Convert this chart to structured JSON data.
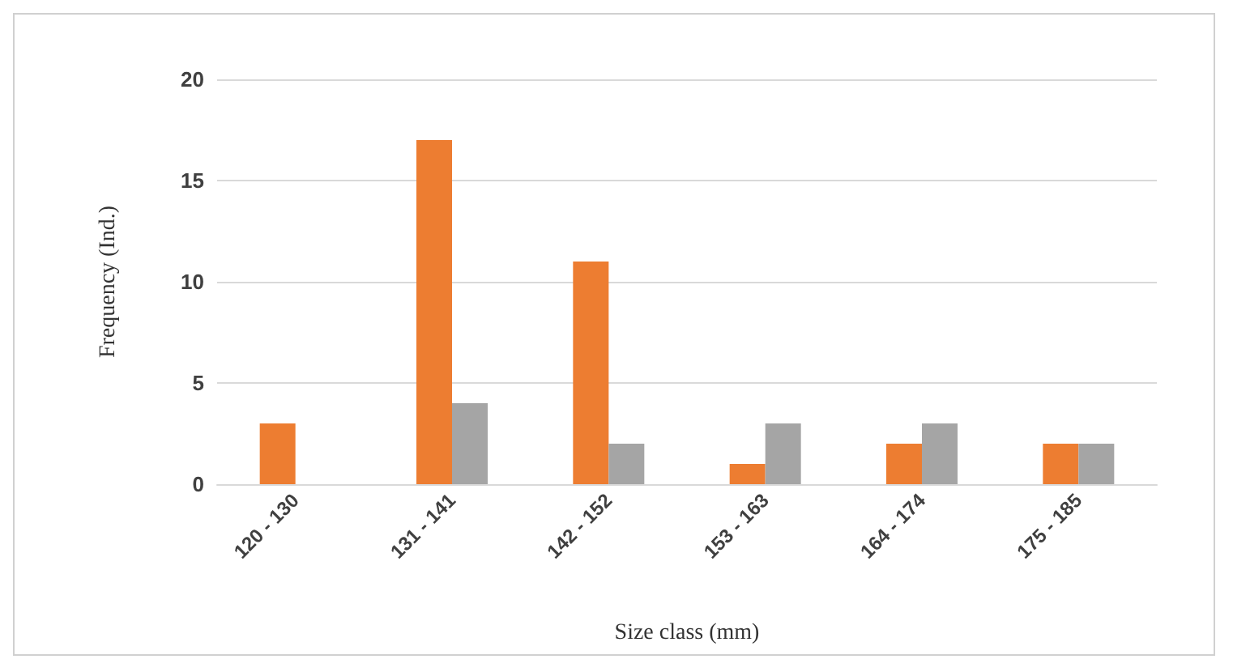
{
  "chart_data": {
    "type": "bar",
    "xlabel": "Size class (mm)",
    "ylabel": "Frequency (Ind.)",
    "categories": [
      "120 - 130",
      "131 - 141",
      "142 - 152",
      "153 - 163",
      "164 - 174",
      "175 - 185"
    ],
    "series": [
      {
        "color": "#ed7d31",
        "values": [
          3,
          17,
          11,
          1,
          2,
          2
        ]
      },
      {
        "color": "#a5a5a5",
        "values": [
          0,
          4,
          2,
          3,
          3,
          2
        ]
      }
    ],
    "ylim": [
      0,
      20
    ],
    "yticks": [
      0,
      5,
      10,
      15,
      20
    ],
    "grid": "y"
  }
}
